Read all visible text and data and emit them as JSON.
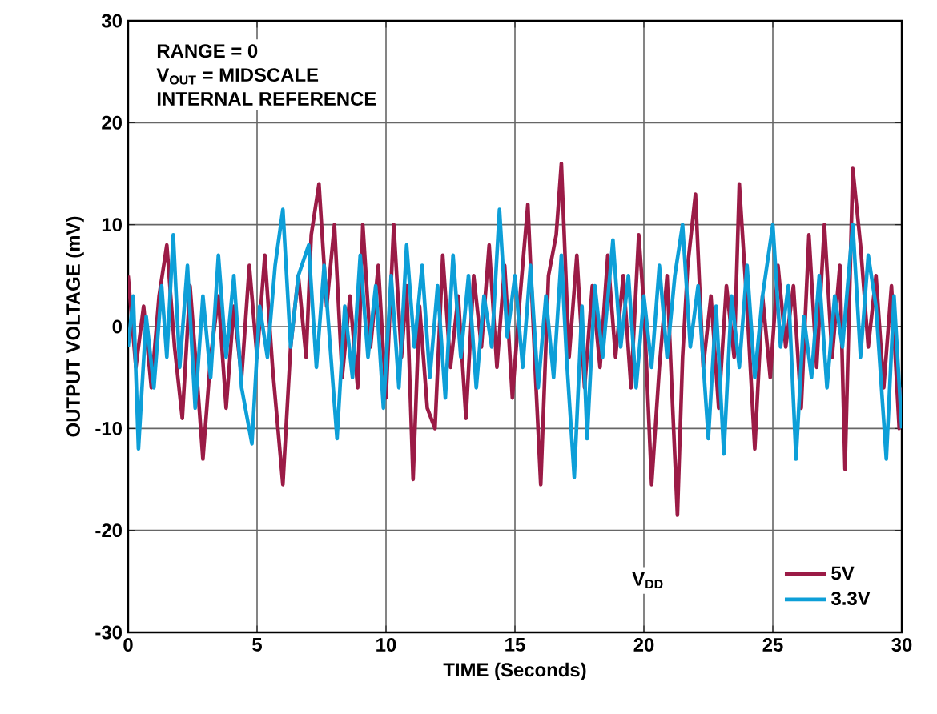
{
  "chart_data": {
    "type": "line",
    "xlabel": "TIME (Seconds)",
    "ylabel": "OUTPUT VOLTAGE (mV)",
    "legend_title": "V$_{DD}$",
    "annotations": [
      "RANGE = 0",
      "V$_{OUT}$ = MIDSCALE",
      "INTERNAL REFERENCE"
    ],
    "xlim": [
      0,
      30
    ],
    "xticks": [
      0,
      5,
      10,
      15,
      20,
      25,
      30
    ],
    "ylim": [
      -30,
      30
    ],
    "yticks": [
      -30,
      -20,
      -10,
      0,
      10,
      20,
      30
    ],
    "grid": true,
    "legend": "bottom right",
    "marker": "none",
    "line_style": "solid",
    "series": [
      {
        "name": "5V",
        "color": "#9b1b46",
        "x": [
          0,
          0.3,
          0.6,
          0.9,
          1.2,
          1.5,
          1.8,
          2.1,
          2.4,
          2.7,
          2.9,
          3.2,
          3.5,
          3.8,
          4.1,
          4.4,
          4.7,
          5.0,
          5.3,
          5.6,
          6.0,
          6.3,
          6.6,
          6.9,
          7.1,
          7.4,
          7.7,
          8.0,
          8.3,
          8.6,
          8.9,
          9.1,
          9.4,
          9.7,
          10.0,
          10.3,
          10.6,
          10.8,
          11.05,
          11.3,
          11.6,
          11.9,
          12.2,
          12.5,
          12.8,
          13.1,
          13.4,
          13.7,
          14.0,
          14.3,
          14.6,
          14.9,
          15.2,
          15.5,
          15.8,
          16.0,
          16.3,
          16.6,
          16.8,
          17.1,
          17.4,
          17.7,
          18.0,
          18.3,
          18.6,
          18.9,
          19.2,
          19.5,
          19.8,
          20.0,
          20.3,
          20.6,
          20.9,
          21.1,
          21.3,
          21.5,
          21.7,
          22.0,
          22.3,
          22.6,
          22.9,
          23.2,
          23.5,
          23.7,
          24.0,
          24.3,
          24.6,
          24.9,
          25.2,
          25.5,
          25.8,
          26.1,
          26.4,
          26.7,
          27.0,
          27.3,
          27.6,
          27.8,
          28.1,
          28.4,
          28.7,
          29.0,
          29.3,
          29.6,
          29.9,
          30
        ],
        "values": [
          5,
          -4,
          2,
          -6,
          3,
          8,
          -2,
          -9,
          4,
          -6,
          -13,
          -3,
          3,
          -8,
          2,
          -5,
          6,
          -3,
          7,
          -4,
          -15.5,
          -2,
          5,
          -3,
          9,
          14,
          2,
          10,
          -5,
          3,
          -6,
          10,
          -2,
          6,
          -7,
          10,
          -3,
          4,
          -15,
          2,
          -8,
          -10,
          7,
          -4,
          3,
          -9,
          5,
          -2,
          8,
          -4,
          6,
          -7,
          3,
          12,
          -5,
          -15.5,
          5,
          9,
          16,
          -3,
          7,
          -6,
          4,
          -4,
          7,
          -3,
          5,
          -6,
          9,
          2,
          -15.5,
          -4,
          5,
          -7,
          -18.5,
          -3,
          6,
          13,
          -4,
          3,
          -8,
          4,
          -3,
          14,
          2,
          -12,
          3,
          -5,
          6,
          -2,
          4,
          -8,
          9,
          -4,
          10,
          -3,
          6,
          -14,
          15.5,
          8,
          -2,
          5,
          -6,
          4,
          -10,
          -6
        ]
      },
      {
        "name": "3.3V",
        "color": "#0d9fd8",
        "x": [
          0,
          0.2,
          0.4,
          0.7,
          1.0,
          1.3,
          1.5,
          1.75,
          2.0,
          2.3,
          2.6,
          2.9,
          3.2,
          3.5,
          3.8,
          4.1,
          4.4,
          4.8,
          5.1,
          5.4,
          5.7,
          6.0,
          6.3,
          6.6,
          7.0,
          7.3,
          7.6,
          8.1,
          8.4,
          8.7,
          9.0,
          9.3,
          9.6,
          9.9,
          10.2,
          10.5,
          10.8,
          11.1,
          11.4,
          11.7,
          12.0,
          12.3,
          12.6,
          12.9,
          13.2,
          13.5,
          13.8,
          14.1,
          14.4,
          14.7,
          15.0,
          15.3,
          15.6,
          15.9,
          16.2,
          16.5,
          16.8,
          17.0,
          17.3,
          17.6,
          17.8,
          18.1,
          18.4,
          18.8,
          19.1,
          19.4,
          19.7,
          20.0,
          20.3,
          20.6,
          20.9,
          21.2,
          21.5,
          21.8,
          22.1,
          22.5,
          22.8,
          23.1,
          23.4,
          23.7,
          24.0,
          24.3,
          24.6,
          25.0,
          25.3,
          25.6,
          25.9,
          26.2,
          26.5,
          26.8,
          27.1,
          27.4,
          27.7,
          28.1,
          28.4,
          28.7,
          29.0,
          29.4,
          29.7,
          30
        ],
        "values": [
          -2,
          3,
          -12,
          1,
          -6,
          4,
          -3,
          9,
          -4,
          6,
          -8,
          3,
          -5,
          7,
          -3,
          5,
          -6,
          -11.5,
          2,
          -3,
          6,
          11.5,
          -2,
          5,
          8,
          -4,
          6,
          -11,
          2,
          -5,
          7,
          -3,
          4,
          -8,
          5,
          -6,
          8,
          -2,
          6,
          -5,
          4,
          -7,
          7,
          -3,
          5,
          -6,
          3,
          -2,
          11.5,
          -1,
          5,
          -4,
          6,
          -6,
          3,
          -5,
          7,
          -3,
          -14.8,
          2,
          -11,
          4,
          -3,
          8.5,
          -2,
          5,
          -6,
          3,
          -4,
          6,
          -3,
          5,
          10,
          -2,
          4,
          -11,
          2,
          -12.5,
          3,
          -4,
          6,
          -5,
          3,
          10,
          -2,
          4,
          -13,
          1,
          -5,
          5,
          -6,
          3,
          -2,
          10,
          -3,
          7,
          2,
          -13,
          3,
          -10
        ]
      }
    ]
  }
}
